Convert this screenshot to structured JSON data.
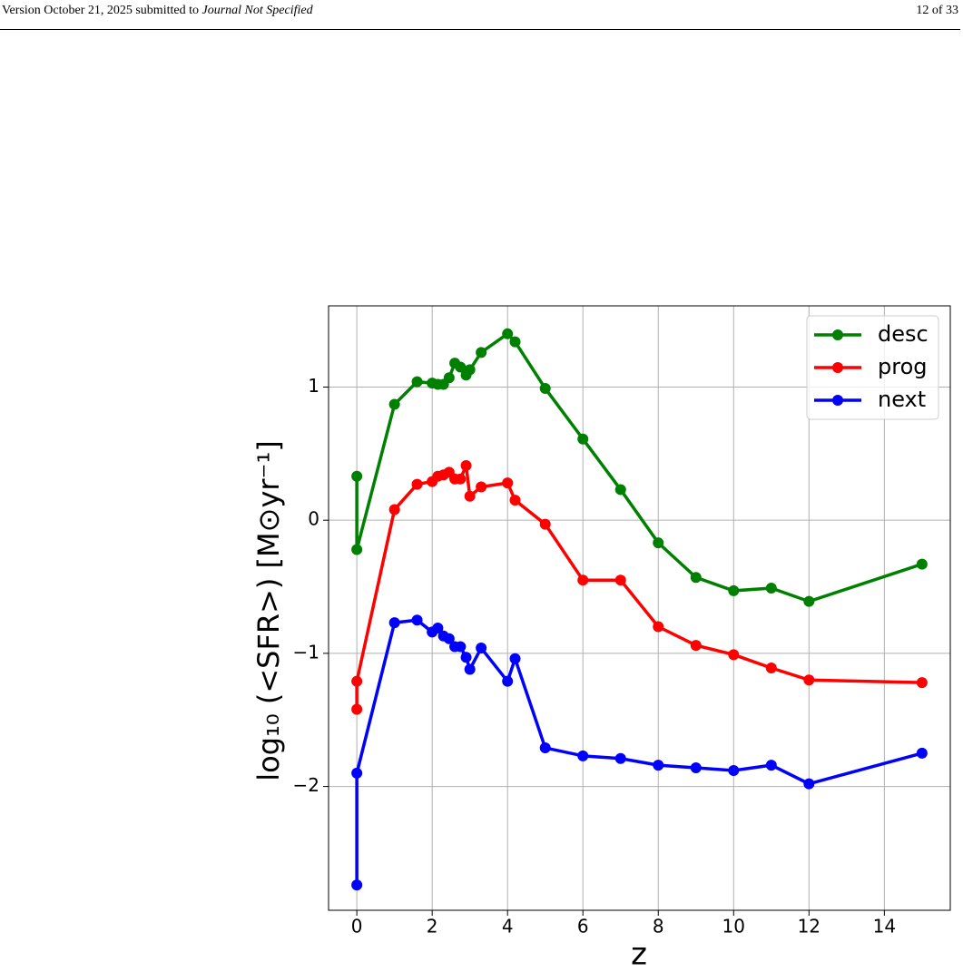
{
  "header": {
    "left": "Version October 21, 2025 submitted to",
    "journal": "Journal Not Specified",
    "page": "12 of 33"
  },
  "chart_data": {
    "type": "line",
    "x_label": "z",
    "y_label": "log₁₀ (<SFR>) [M⊙yr⁻¹]",
    "x": [
      0,
      0,
      1,
      1.6,
      2,
      2.15,
      2.3,
      2.45,
      2.6,
      2.75,
      2.9,
      3,
      3.3,
      4,
      4.2,
      5,
      6,
      7,
      8,
      9,
      10,
      11,
      12,
      15
    ],
    "series": [
      {
        "name": "desc",
        "color": "#008000",
        "values": [
          0.33,
          -0.22,
          0.87,
          1.04,
          1.03,
          1.02,
          1.02,
          1.07,
          1.18,
          1.15,
          1.09,
          1.13,
          1.26,
          1.4,
          1.34,
          0.99,
          0.61,
          0.23,
          -0.17,
          -0.43,
          -0.53,
          -0.51,
          -0.61,
          -0.33
        ]
      },
      {
        "name": "prog",
        "color": "#ff0000",
        "values": [
          -1.42,
          -1.21,
          0.08,
          0.27,
          0.29,
          0.33,
          0.34,
          0.36,
          0.31,
          0.31,
          0.41,
          0.18,
          0.25,
          0.28,
          0.15,
          -0.03,
          -0.45,
          -0.45,
          -0.8,
          -0.94,
          -1.01,
          -1.11,
          -1.2,
          -1.22
        ]
      },
      {
        "name": "next",
        "color": "#0000ff",
        "values": [
          -2.74,
          -1.9,
          -0.77,
          -0.75,
          -0.84,
          -0.81,
          -0.87,
          -0.89,
          -0.95,
          -0.95,
          -1.03,
          -1.12,
          -0.96,
          -1.21,
          -1.04,
          -1.71,
          -1.77,
          -1.79,
          -1.84,
          -1.86,
          -1.88,
          -1.84,
          -1.98,
          -1.75
        ]
      }
    ],
    "xlim": [
      -0.75,
      15.75
    ],
    "ylim": [
      -2.93,
      1.61
    ],
    "xticks": [
      0,
      2,
      4,
      6,
      8,
      10,
      12,
      14
    ],
    "yticks": [
      {
        "value": -2,
        "label": "−2"
      },
      {
        "value": -1,
        "label": "−1"
      },
      0,
      1
    ],
    "grid": true,
    "legend": "upper right"
  }
}
